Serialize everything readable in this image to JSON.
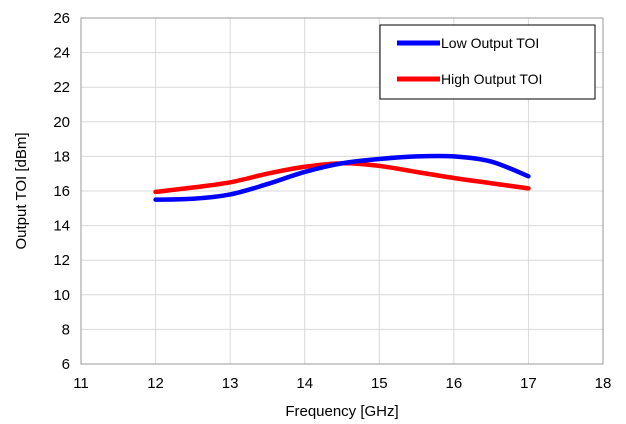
{
  "chart_data": {
    "type": "line",
    "title": "",
    "xlabel": "Frequency [GHz]",
    "ylabel": "Output TOI [dBm]",
    "xlim": [
      11,
      18
    ],
    "ylim": [
      6,
      26
    ],
    "xticks": [
      "11",
      "12",
      "13",
      "14",
      "15",
      "16",
      "17",
      "18"
    ],
    "yticks": [
      "6",
      "8",
      "10",
      "12",
      "14",
      "16",
      "18",
      "20",
      "22",
      "24",
      "26"
    ],
    "grid": true,
    "legend_position": "top-right",
    "series": [
      {
        "name": "Low Output TOI",
        "color": "#0000FF",
        "x": [
          12,
          12.5,
          13,
          13.5,
          14,
          14.5,
          15,
          15.5,
          16,
          16.5,
          17
        ],
        "y": [
          15.5,
          15.55,
          15.8,
          16.4,
          17.1,
          17.6,
          17.85,
          18.0,
          18.0,
          17.7,
          16.85
        ]
      },
      {
        "name": "High Output TOI",
        "color": "#FF0000",
        "x": [
          12,
          12.5,
          13,
          13.5,
          14,
          14.5,
          15,
          15.5,
          16,
          16.5,
          17
        ],
        "y": [
          15.95,
          16.2,
          16.5,
          17.0,
          17.4,
          17.6,
          17.45,
          17.1,
          16.75,
          16.45,
          16.15
        ]
      }
    ]
  }
}
